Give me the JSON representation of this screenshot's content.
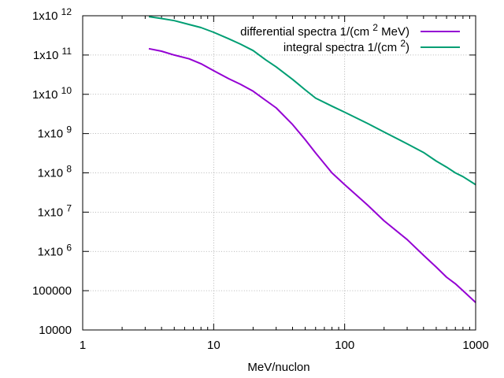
{
  "chart_data": {
    "type": "line",
    "title": "",
    "xlabel": "MeV/nuclon",
    "ylabel": "",
    "xscale": "log",
    "yscale": "log",
    "xlim": [
      1,
      1000
    ],
    "ylim": [
      10000,
      1000000000000
    ],
    "grid": true,
    "legend_position": "top-right",
    "x_tick_labels": [
      {
        "value": 1,
        "label": "1"
      },
      {
        "value": 10,
        "label": "10"
      },
      {
        "value": 100,
        "label": "100"
      },
      {
        "value": 1000,
        "label": "1000"
      }
    ],
    "y_tick_labels": [
      {
        "value": 10000,
        "base": "10000",
        "exp": ""
      },
      {
        "value": 100000,
        "base": "100000",
        "exp": ""
      },
      {
        "value": 1000000,
        "base": "1x10",
        "exp": "6"
      },
      {
        "value": 10000000,
        "base": "1x10",
        "exp": "7"
      },
      {
        "value": 100000000,
        "base": "1x10",
        "exp": "8"
      },
      {
        "value": 1000000000,
        "base": "1x10",
        "exp": "9"
      },
      {
        "value": 10000000000,
        "base": "1x10",
        "exp": "10"
      },
      {
        "value": 100000000000,
        "base": "1x10",
        "exp": "11"
      },
      {
        "value": 1000000000000,
        "base": "1x10",
        "exp": "12"
      }
    ],
    "series": [
      {
        "name": "differential spectra 1/(cm2 MeV)",
        "legend_parts": [
          "differential spectra 1/(cm",
          "2",
          " MeV)"
        ],
        "color": "#9400d3",
        "x": [
          3.2,
          4.0,
          5.0,
          6.5,
          8.0,
          10,
          13,
          16,
          20,
          25,
          30,
          40,
          50,
          60,
          80,
          100,
          150,
          200,
          300,
          400,
          500,
          600,
          700,
          800,
          1000
        ],
        "y": [
          145000000000.0,
          125000000000.0,
          100000000000.0,
          80000000000.0,
          60000000000.0,
          40000000000.0,
          25000000000.0,
          18000000000.0,
          12000000000.0,
          7000000000.0,
          4500000000.0,
          1700000000.0,
          700000000.0,
          320000000.0,
          100000000.0,
          50000000.0,
          15000000.0,
          6000000.0,
          2000000.0,
          800000.0,
          400000.0,
          220000.0,
          150000.0,
          100000.0,
          50000.0
        ]
      },
      {
        "name": "integral spectra 1/(cm2)",
        "legend_parts": [
          "integral spectra 1/(cm",
          "2",
          ")"
        ],
        "color": "#009e73",
        "x": [
          3.2,
          4.0,
          5.0,
          6.5,
          8.0,
          10,
          13,
          16,
          20,
          25,
          30,
          40,
          50,
          60,
          80,
          100,
          150,
          200,
          300,
          400,
          500,
          600,
          700,
          800,
          1000
        ],
        "y": [
          950000000000.0,
          850000000000.0,
          750000000000.0,
          600000000000.0,
          500000000000.0,
          380000000000.0,
          260000000000.0,
          190000000000.0,
          130000000000.0,
          75000000000.0,
          50000000000.0,
          24000000000.0,
          13000000000.0,
          8000000000.0,
          5000000000.0,
          3500000000.0,
          1800000000.0,
          1100000000.0,
          550000000.0,
          330000000.0,
          200000000.0,
          140000000.0,
          100000000.0,
          80000000.0,
          50000000.0
        ]
      }
    ]
  }
}
